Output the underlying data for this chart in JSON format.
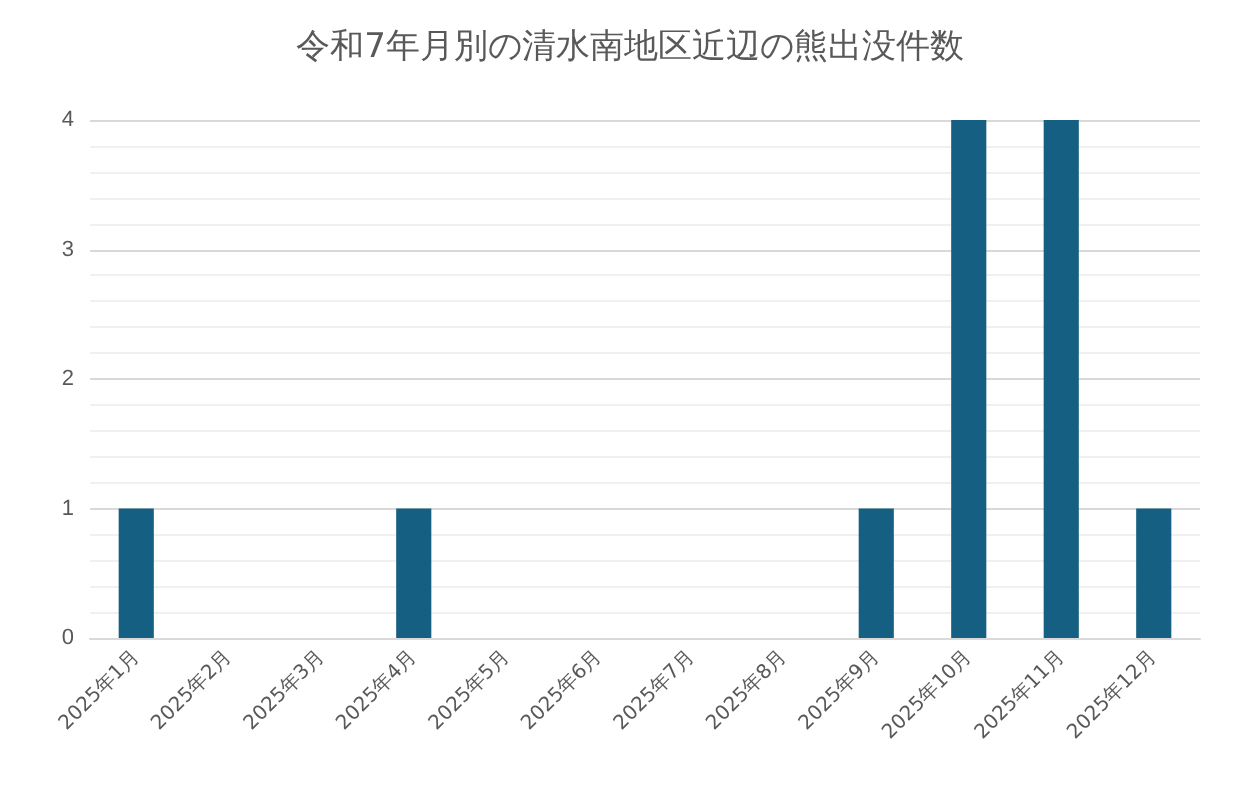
{
  "chart_data": {
    "type": "bar",
    "title": "令和7年月別の清水南地区近辺の熊出没件数",
    "categories": [
      "2025年1月",
      "2025年2月",
      "2025年3月",
      "2025年4月",
      "2025年5月",
      "2025年6月",
      "2025年7月",
      "2025年8月",
      "2025年9月",
      "2025年10月",
      "2025年11月",
      "2025年12月"
    ],
    "values": [
      1,
      0,
      0,
      1,
      0,
      0,
      0,
      0,
      1,
      4,
      4,
      1
    ],
    "color": "#156082",
    "ylim": [
      0,
      4
    ],
    "yticks": [
      0,
      1,
      2,
      3,
      4
    ],
    "grid": "y"
  }
}
